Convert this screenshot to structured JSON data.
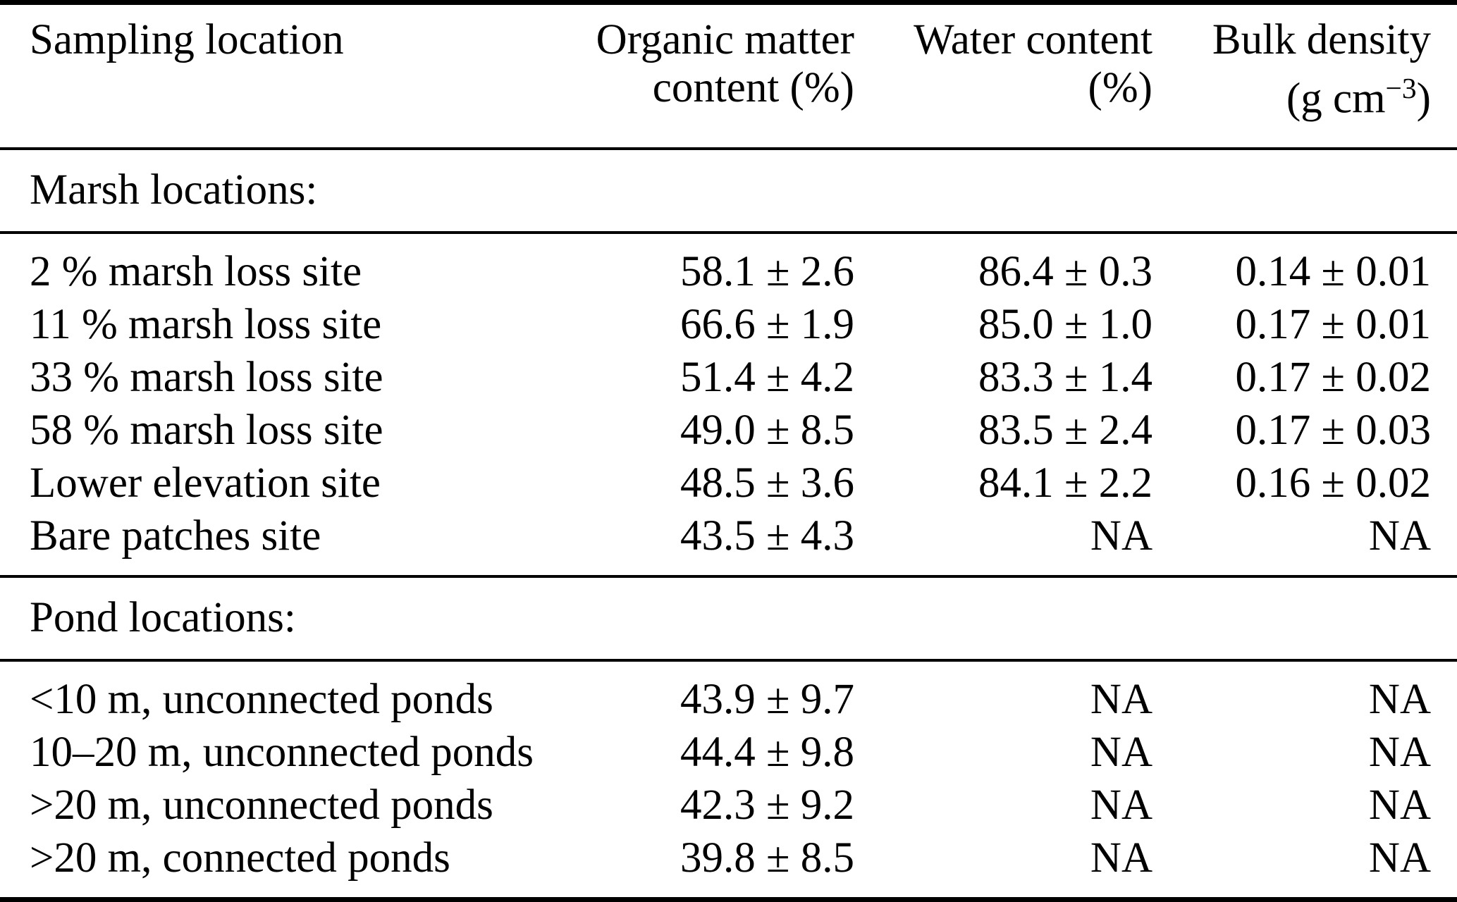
{
  "table": {
    "columns": [
      {
        "line1": "Sampling location",
        "line2": ""
      },
      {
        "line1": "Organic matter",
        "line2": "content (%)"
      },
      {
        "line1": "Water content",
        "line2": "(%)"
      },
      {
        "line1": "Bulk density",
        "line2_prefix": "(g cm",
        "line2_sup": "−3",
        "line2_suffix": ")"
      }
    ],
    "sections": [
      {
        "title": "Marsh locations:",
        "rows": [
          {
            "location": "2 % marsh loss site",
            "organic_matter": "58.1 ± 2.6",
            "water_content": "86.4 ± 0.3",
            "bulk_density": "0.14 ± 0.01"
          },
          {
            "location": "11 % marsh loss site",
            "organic_matter": "66.6 ± 1.9",
            "water_content": "85.0 ± 1.0",
            "bulk_density": "0.17 ± 0.01"
          },
          {
            "location": "33 % marsh loss site",
            "organic_matter": "51.4 ± 4.2",
            "water_content": "83.3 ± 1.4",
            "bulk_density": "0.17 ± 0.02"
          },
          {
            "location": "58 % marsh loss site",
            "organic_matter": "49.0 ± 8.5",
            "water_content": "83.5 ± 2.4",
            "bulk_density": "0.17 ± 0.03"
          },
          {
            "location": "Lower elevation site",
            "organic_matter": "48.5 ± 3.6",
            "water_content": "84.1 ± 2.2",
            "bulk_density": "0.16 ± 0.02"
          },
          {
            "location": "Bare patches site",
            "organic_matter": "43.5 ± 4.3",
            "water_content": "NA",
            "bulk_density": "NA"
          }
        ]
      },
      {
        "title": "Pond locations:",
        "rows": [
          {
            "location": "<10 m, unconnected ponds",
            "organic_matter": "43.9 ± 9.7",
            "water_content": "NA",
            "bulk_density": "NA"
          },
          {
            "location": "10–20 m, unconnected ponds",
            "organic_matter": "44.4 ± 9.8",
            "water_content": "NA",
            "bulk_density": "NA"
          },
          {
            "location": ">20 m, unconnected ponds",
            "organic_matter": "42.3 ± 9.2",
            "water_content": "NA",
            "bulk_density": "NA"
          },
          {
            "location": ">20 m, connected ponds",
            "organic_matter": "39.8 ± 8.5",
            "water_content": "NA",
            "bulk_density": "NA"
          }
        ]
      }
    ]
  }
}
